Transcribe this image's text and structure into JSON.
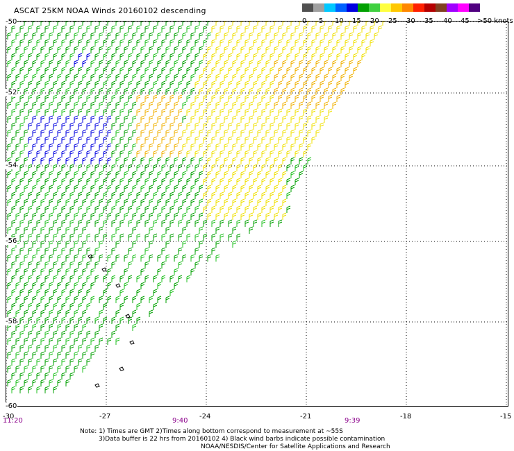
{
  "title": "ASCAT 25KM NOAA Winds 20160102 descending",
  "legend": {
    "colors": [
      "#505050",
      "#a0a0a0",
      "#00c8ff",
      "#0060ff",
      "#0000e0",
      "#00a000",
      "#40d040",
      "#ffff40",
      "#ffc800",
      "#ff8800",
      "#ff2000",
      "#b40000",
      "#804020",
      "#a000ff",
      "#ff00ff",
      "#500080"
    ],
    "labels": [
      "0",
      "5",
      "10",
      "15",
      "20",
      "25",
      "30",
      "35",
      "40",
      "45",
      ">50 knots"
    ]
  },
  "axes": {
    "lat_labels": [
      "-50",
      "-52",
      "-54",
      "-56",
      "-58",
      "-60"
    ],
    "lon_labels": [
      "-30",
      "-27",
      "-24",
      "-21",
      "-18",
      "-15"
    ],
    "times": [
      "11:20",
      "9:40",
      "9:39"
    ]
  },
  "notes": {
    "line1": "Note: 1) Times are GMT 2)Times along bottom correspond to measurement at ~55S",
    "line2": "3)Data buffer is 22 hrs from 20160102 4) Black wind barbs indicate possible contamination",
    "line3": "NOAA/NESDIS/Center for Satellite Applications and Research"
  },
  "colors": {
    "wind_green": "#00a000",
    "wind_lightgreen": "#20c020",
    "wind_blue": "#0000e0",
    "wind_yellow": "#f0e000",
    "wind_orange": "#f0b000",
    "grid": "#000000",
    "time_text": "#8b008b"
  }
}
